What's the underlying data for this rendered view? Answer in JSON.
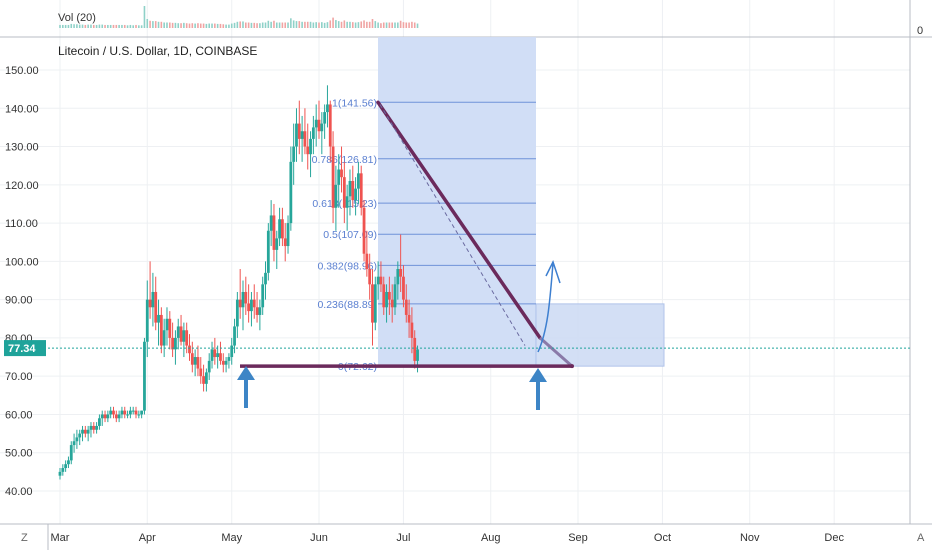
{
  "chart_data": {
    "type": "candlestick",
    "title": "Litecoin / U.S. Dollar, 1D, COINBASE",
    "volume_label": "Vol (20)",
    "volume_zero_label": "0",
    "current_price": "77.34",
    "y_ticks": [
      "150.00",
      "140.00",
      "130.00",
      "120.00",
      "110.00",
      "100.00",
      "90.00",
      "80.00",
      "70.00",
      "60.00",
      "50.00",
      "40.00"
    ],
    "y_tick_values": [
      150,
      140,
      130,
      120,
      110,
      100,
      90,
      80,
      70,
      60,
      50,
      40
    ],
    "ylim": [
      36,
      155
    ],
    "x_ticks": [
      "Mar",
      "Apr",
      "May",
      "Jun",
      "Jul",
      "Aug",
      "Sep",
      "Oct",
      "Nov",
      "Dec"
    ],
    "x_tick_days": [
      0,
      31,
      61,
      92,
      122,
      153,
      184,
      214,
      245,
      275
    ],
    "fib_levels": [
      {
        "label": "1(141.56)",
        "value": 141.56
      },
      {
        "label": "0.786(126.81)",
        "value": 126.81
      },
      {
        "label": "0.618(115.23)",
        "value": 115.23
      },
      {
        "label": "0.5(107.09)",
        "value": 107.09
      },
      {
        "label": "0.382(98.96)",
        "value": 98.96
      },
      {
        "label": "0.236(88.89)",
        "value": 88.89
      },
      {
        "label": "0(72.62)",
        "value": 72.62
      }
    ],
    "candles": [
      [
        44,
        46,
        43,
        45
      ],
      [
        45,
        47,
        44,
        46
      ],
      [
        46,
        48,
        45,
        47
      ],
      [
        47,
        49,
        46,
        48
      ],
      [
        48,
        53,
        47,
        52
      ],
      [
        52,
        55,
        50,
        53
      ],
      [
        53,
        56,
        51,
        54
      ],
      [
        54,
        56,
        52,
        55
      ],
      [
        55,
        57,
        53,
        56
      ],
      [
        56,
        57,
        54,
        55
      ],
      [
        55,
        57,
        53,
        56
      ],
      [
        56,
        58,
        54,
        57
      ],
      [
        57,
        58,
        55,
        56
      ],
      [
        56,
        58,
        55,
        57
      ],
      [
        57,
        60,
        56,
        59
      ],
      [
        59,
        61,
        57,
        60
      ],
      [
        60,
        61,
        58,
        59
      ],
      [
        59,
        61,
        58,
        60
      ],
      [
        60,
        62,
        59,
        61
      ],
      [
        61,
        62,
        59,
        60
      ],
      [
        60,
        61,
        58,
        59
      ],
      [
        59,
        61,
        58,
        60
      ],
      [
        60,
        62,
        59,
        61
      ],
      [
        61,
        62,
        59,
        60
      ],
      [
        60,
        61,
        59,
        60
      ],
      [
        60,
        62,
        59,
        61
      ],
      [
        61,
        62,
        60,
        61
      ],
      [
        61,
        62,
        59,
        60
      ],
      [
        60,
        61,
        59,
        60
      ],
      [
        60,
        61,
        59,
        61
      ],
      [
        61,
        80,
        60,
        79
      ],
      [
        79,
        95,
        75,
        90
      ],
      [
        90,
        100,
        85,
        88
      ],
      [
        88,
        97,
        83,
        92
      ],
      [
        92,
        96,
        82,
        84
      ],
      [
        84,
        90,
        78,
        86
      ],
      [
        86,
        88,
        76,
        78
      ],
      [
        78,
        85,
        75,
        82
      ],
      [
        82,
        88,
        78,
        85
      ],
      [
        85,
        87,
        77,
        80
      ],
      [
        80,
        84,
        75,
        77
      ],
      [
        77,
        82,
        73,
        80
      ],
      [
        80,
        85,
        77,
        83
      ],
      [
        83,
        86,
        78,
        79
      ],
      [
        79,
        84,
        75,
        82
      ],
      [
        82,
        84,
        76,
        78
      ],
      [
        78,
        81,
        74,
        76
      ],
      [
        76,
        79,
        71,
        73
      ],
      [
        73,
        77,
        70,
        75
      ],
      [
        75,
        78,
        70,
        72
      ],
      [
        72,
        75,
        68,
        70
      ],
      [
        70,
        73,
        66,
        68
      ],
      [
        68,
        72,
        66,
        71
      ],
      [
        71,
        76,
        69,
        74
      ],
      [
        74,
        79,
        72,
        77
      ],
      [
        77,
        80,
        73,
        75
      ],
      [
        75,
        78,
        72,
        76
      ],
      [
        76,
        79,
        73,
        74
      ],
      [
        74,
        76,
        71,
        73
      ],
      [
        73,
        75,
        71,
        74
      ],
      [
        74,
        76,
        72,
        75
      ],
      [
        75,
        80,
        73,
        78
      ],
      [
        78,
        85,
        76,
        83
      ],
      [
        83,
        92,
        80,
        90
      ],
      [
        90,
        98,
        85,
        88
      ],
      [
        88,
        95,
        82,
        92
      ],
      [
        92,
        96,
        86,
        89
      ],
      [
        89,
        94,
        84,
        87
      ],
      [
        87,
        92,
        83,
        90
      ],
      [
        90,
        94,
        85,
        88
      ],
      [
        88,
        92,
        84,
        86
      ],
      [
        86,
        90,
        82,
        88
      ],
      [
        88,
        96,
        86,
        94
      ],
      [
        94,
        100,
        90,
        97
      ],
      [
        97,
        110,
        95,
        108
      ],
      [
        108,
        116,
        104,
        112
      ],
      [
        112,
        115,
        100,
        103
      ],
      [
        103,
        108,
        98,
        106
      ],
      [
        106,
        114,
        104,
        111
      ],
      [
        111,
        114,
        104,
        106
      ],
      [
        106,
        110,
        100,
        104
      ],
      [
        104,
        112,
        102,
        110
      ],
      [
        110,
        130,
        108,
        126
      ],
      [
        126,
        136,
        120,
        130
      ],
      [
        130,
        140,
        126,
        136
      ],
      [
        136,
        142,
        128,
        132
      ],
      [
        132,
        138,
        126,
        134
      ],
      [
        134,
        140,
        128,
        130
      ],
      [
        130,
        136,
        124,
        128
      ],
      [
        128,
        134,
        122,
        132
      ],
      [
        132,
        138,
        128,
        135
      ],
      [
        135,
        141,
        130,
        137
      ],
      [
        137,
        142,
        132,
        134
      ],
      [
        134,
        139,
        128,
        136
      ],
      [
        136,
        141,
        132,
        139
      ],
      [
        139,
        146,
        135,
        141
      ],
      [
        141,
        142,
        126,
        130
      ],
      [
        130,
        134,
        110,
        114
      ],
      [
        114,
        125,
        108,
        120
      ],
      [
        120,
        128,
        114,
        124
      ],
      [
        124,
        130,
        118,
        122
      ],
      [
        122,
        126,
        110,
        114
      ],
      [
        114,
        120,
        108,
        117
      ],
      [
        117,
        124,
        112,
        121
      ],
      [
        121,
        125,
        114,
        116
      ],
      [
        116,
        122,
        112,
        119
      ],
      [
        119,
        126,
        115,
        123
      ],
      [
        123,
        125,
        112,
        114
      ],
      [
        114,
        116,
        100,
        102
      ],
      [
        102,
        108,
        96,
        98
      ],
      [
        98,
        102,
        90,
        94
      ],
      [
        94,
        98,
        78,
        84
      ],
      [
        84,
        96,
        82,
        94
      ],
      [
        94,
        100,
        90,
        96
      ],
      [
        96,
        100,
        92,
        94
      ],
      [
        94,
        96,
        86,
        88
      ],
      [
        88,
        94,
        84,
        92
      ],
      [
        92,
        96,
        86,
        90
      ],
      [
        90,
        94,
        84,
        88
      ],
      [
        88,
        96,
        86,
        94
      ],
      [
        94,
        100,
        90,
        98
      ],
      [
        98,
        107,
        92,
        96
      ],
      [
        96,
        99,
        88,
        90
      ],
      [
        90,
        94,
        84,
        86
      ],
      [
        86,
        90,
        80,
        84
      ],
      [
        84,
        88,
        76,
        80
      ],
      [
        80,
        82,
        72,
        74
      ],
      [
        74,
        78,
        71,
        77
      ]
    ]
  }
}
